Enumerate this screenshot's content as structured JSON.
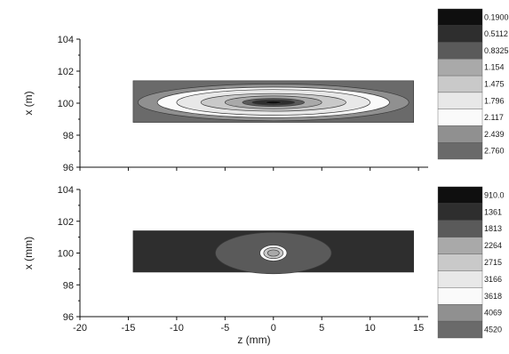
{
  "chart_data": [
    {
      "type": "contour",
      "ylabel": "x (m)",
      "xlim": [
        -20,
        16
      ],
      "ylim": [
        96,
        104
      ],
      "yticks": [
        96,
        98,
        100,
        102,
        104
      ],
      "xticks_shown": false,
      "domain": {
        "z": [
          -14.5,
          14.5
        ],
        "x": [
          98.8,
          101.4
        ]
      },
      "center": {
        "z": 0,
        "x": 100.05
      },
      "levels": [
        {
          "label": "0.1900",
          "color": "#0f0f0f"
        },
        {
          "label": "0.5112",
          "color": "#2e2e2e"
        },
        {
          "label": "0.8325",
          "color": "#5a5a5a"
        },
        {
          "label": "1.154",
          "color": "#a9a9a9"
        },
        {
          "label": "1.475",
          "color": "#c9c9c9"
        },
        {
          "label": "1.796",
          "color": "#e8e8e8"
        },
        {
          "label": "2.117",
          "color": "#fafafa"
        },
        {
          "label": "2.439",
          "color": "#909090"
        },
        {
          "label": "2.760",
          "color": "#6a6a6a"
        }
      ],
      "contours": [
        {
          "level": 8,
          "rz": 14.5,
          "rx": 1.3
        },
        {
          "level": 7,
          "rz": 14.0,
          "rx": 1.15
        },
        {
          "level": 6,
          "rz": 12.0,
          "rx": 0.95
        },
        {
          "level": 5,
          "rz": 10.0,
          "rx": 0.8
        },
        {
          "level": 4,
          "rz": 7.5,
          "rx": 0.55
        },
        {
          "level": 3,
          "rz": 5.0,
          "rx": 0.4
        },
        {
          "level": 2,
          "rz": 3.2,
          "rx": 0.25
        },
        {
          "level": 1,
          "rz": 2.2,
          "rx": 0.16
        },
        {
          "level": 0,
          "rz": 0.8,
          "rx": 0.09
        }
      ]
    },
    {
      "type": "contour",
      "xlabel": "z (mm)",
      "ylabel": "x (mm)",
      "xlim": [
        -20,
        16
      ],
      "ylim": [
        96,
        104
      ],
      "xticks": [
        -20,
        -15,
        -10,
        -5,
        0,
        5,
        10,
        15
      ],
      "yticks": [
        96,
        98,
        100,
        102,
        104
      ],
      "domain": {
        "z": [
          -14.5,
          14.5
        ],
        "x": [
          98.8,
          101.4
        ]
      },
      "center": {
        "z": 0,
        "x": 100.0
      },
      "levels": [
        {
          "label": "910.0",
          "color": "#0f0f0f"
        },
        {
          "label": "1361",
          "color": "#2e2e2e"
        },
        {
          "label": "1813",
          "color": "#5a5a5a"
        },
        {
          "label": "2264",
          "color": "#a9a9a9"
        },
        {
          "label": "2715",
          "color": "#c9c9c9"
        },
        {
          "label": "3166",
          "color": "#e8e8e8"
        },
        {
          "label": "3618",
          "color": "#fafafa"
        },
        {
          "label": "4069",
          "color": "#909090"
        },
        {
          "label": "4520",
          "color": "#6a6a6a"
        }
      ],
      "contours": [
        {
          "level": 1,
          "rz": 14.5,
          "rx": 1.3
        },
        {
          "level": 2,
          "rz": 6.0,
          "rx": 1.3
        },
        {
          "level": 6,
          "rz": 1.4,
          "rx": 0.5
        },
        {
          "level": 4,
          "rz": 1.0,
          "rx": 0.35
        },
        {
          "level": 3,
          "rz": 0.6,
          "rx": 0.2
        }
      ]
    }
  ]
}
